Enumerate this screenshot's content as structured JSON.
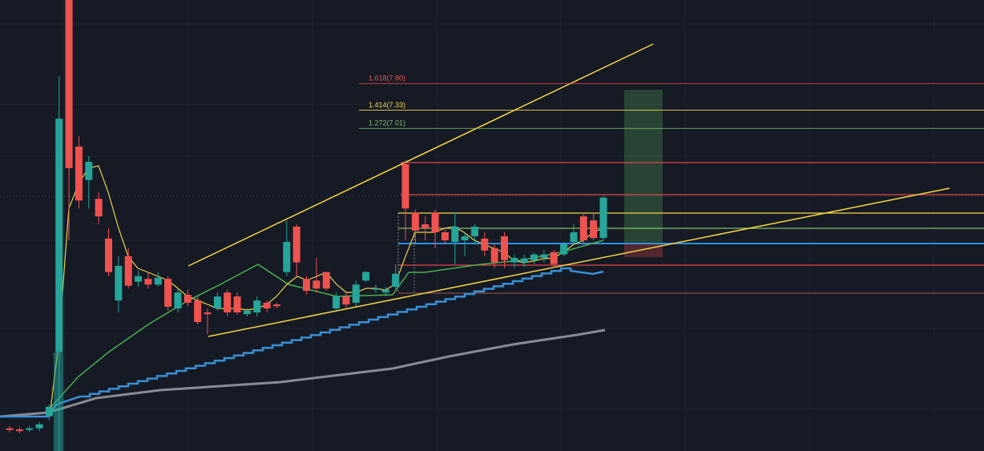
{
  "chart_data": {
    "type": "candlestick",
    "ylim": [
      1.33,
      9.27
    ],
    "up_color": "#26a69a",
    "down_color": "#ef5350",
    "candles": [
      {
        "o": 1.73,
        "h": 1.77,
        "l": 1.66,
        "c": 1.7
      },
      {
        "o": 1.71,
        "h": 1.75,
        "l": 1.64,
        "c": 1.68
      },
      {
        "o": 1.7,
        "h": 1.77,
        "l": 1.66,
        "c": 1.73
      },
      {
        "o": 1.73,
        "h": 1.84,
        "l": 1.68,
        "c": 1.8
      },
      {
        "o": 1.94,
        "h": 2.15,
        "l": 1.87,
        "c": 2.11
      },
      {
        "o": 3.07,
        "h": 7.93,
        "l": 1.33,
        "c": 7.18
      },
      {
        "o": 9.27,
        "h": 9.27,
        "l": 5.04,
        "c": 6.31
      },
      {
        "o": 6.69,
        "h": 6.87,
        "l": 5.6,
        "c": 5.74
      },
      {
        "o": 6.1,
        "h": 6.52,
        "l": 5.6,
        "c": 6.42
      },
      {
        "o": 5.77,
        "h": 5.89,
        "l": 5.32,
        "c": 5.46
      },
      {
        "o": 5.07,
        "h": 5.25,
        "l": 4.41,
        "c": 4.48
      },
      {
        "o": 3.98,
        "h": 4.76,
        "l": 3.77,
        "c": 4.59
      },
      {
        "o": 4.76,
        "h": 4.9,
        "l": 4.19,
        "c": 4.24
      },
      {
        "o": 4.31,
        "h": 4.5,
        "l": 4.22,
        "c": 4.41
      },
      {
        "o": 4.36,
        "h": 4.48,
        "l": 4.19,
        "c": 4.26
      },
      {
        "o": 4.26,
        "h": 4.48,
        "l": 4.22,
        "c": 4.38
      },
      {
        "o": 4.36,
        "h": 4.41,
        "l": 3.8,
        "c": 3.87
      },
      {
        "o": 3.84,
        "h": 4.19,
        "l": 3.77,
        "c": 4.12
      },
      {
        "o": 4.08,
        "h": 4.17,
        "l": 3.88,
        "c": 3.94
      },
      {
        "o": 3.98,
        "h": 4.05,
        "l": 3.56,
        "c": 3.6
      },
      {
        "o": 3.77,
        "h": 3.84,
        "l": 3.38,
        "c": 3.74
      },
      {
        "o": 3.84,
        "h": 4.12,
        "l": 3.8,
        "c": 4.05
      },
      {
        "o": 4.12,
        "h": 4.17,
        "l": 3.7,
        "c": 3.77
      },
      {
        "o": 4.05,
        "h": 4.12,
        "l": 3.73,
        "c": 3.77
      },
      {
        "o": 3.74,
        "h": 3.84,
        "l": 3.7,
        "c": 3.8
      },
      {
        "o": 3.77,
        "h": 4.05,
        "l": 3.7,
        "c": 3.98
      },
      {
        "o": 3.94,
        "h": 3.98,
        "l": 3.77,
        "c": 3.84
      },
      {
        "o": 3.91,
        "h": 3.94,
        "l": 3.84,
        "c": 3.88
      },
      {
        "o": 4.48,
        "h": 5.39,
        "l": 4.41,
        "c": 5.01
      },
      {
        "o": 5.28,
        "h": 5.32,
        "l": 4.41,
        "c": 4.65
      },
      {
        "o": 4.36,
        "h": 4.41,
        "l": 4.08,
        "c": 4.15
      },
      {
        "o": 4.33,
        "h": 4.73,
        "l": 4.12,
        "c": 4.19
      },
      {
        "o": 4.48,
        "h": 4.48,
        "l": 4.15,
        "c": 4.19
      },
      {
        "o": 3.84,
        "h": 4.12,
        "l": 3.8,
        "c": 4.05
      },
      {
        "o": 4.05,
        "h": 4.12,
        "l": 3.84,
        "c": 3.91
      },
      {
        "o": 3.94,
        "h": 4.33,
        "l": 3.88,
        "c": 4.26
      },
      {
        "o": 4.33,
        "h": 4.5,
        "l": 4.31,
        "c": 4.48
      },
      {
        "o": 4.17,
        "h": 4.26,
        "l": 4.12,
        "c": 4.19
      },
      {
        "o": 4.12,
        "h": 4.22,
        "l": 4.05,
        "c": 4.17
      },
      {
        "o": 4.22,
        "h": 4.62,
        "l": 4.17,
        "c": 4.45
      },
      {
        "o": 6.38,
        "h": 6.45,
        "l": 5.04,
        "c": 5.6
      },
      {
        "o": 5.53,
        "h": 5.58,
        "l": 4.97,
        "c": 5.21
      },
      {
        "o": 5.32,
        "h": 5.46,
        "l": 5.04,
        "c": 5.25
      },
      {
        "o": 5.53,
        "h": 5.58,
        "l": 4.9,
        "c": 5.18
      },
      {
        "o": 5.18,
        "h": 5.25,
        "l": 4.97,
        "c": 5.04
      },
      {
        "o": 5.01,
        "h": 5.53,
        "l": 4.62,
        "c": 5.28
      },
      {
        "o": 5.04,
        "h": 5.18,
        "l": 4.76,
        "c": 5.11
      },
      {
        "o": 5.11,
        "h": 5.32,
        "l": 4.97,
        "c": 5.28
      },
      {
        "o": 5.07,
        "h": 5.18,
        "l": 4.76,
        "c": 4.86
      },
      {
        "o": 4.9,
        "h": 4.97,
        "l": 4.55,
        "c": 4.65
      },
      {
        "o": 5.11,
        "h": 5.18,
        "l": 4.55,
        "c": 4.69
      },
      {
        "o": 4.65,
        "h": 4.79,
        "l": 4.55,
        "c": 4.73
      },
      {
        "o": 4.65,
        "h": 4.79,
        "l": 4.57,
        "c": 4.72
      },
      {
        "o": 4.69,
        "h": 4.83,
        "l": 4.62,
        "c": 4.79
      },
      {
        "o": 4.73,
        "h": 4.87,
        "l": 4.65,
        "c": 4.79
      },
      {
        "o": 4.83,
        "h": 4.87,
        "l": 4.55,
        "c": 4.62
      },
      {
        "o": 4.79,
        "h": 5.01,
        "l": 4.76,
        "c": 4.97
      },
      {
        "o": 5.01,
        "h": 5.32,
        "l": 4.97,
        "c": 5.18
      },
      {
        "o": 5.46,
        "h": 5.53,
        "l": 4.97,
        "c": 5.04
      },
      {
        "o": 5.39,
        "h": 5.53,
        "l": 5.04,
        "c": 5.08
      },
      {
        "o": 5.08,
        "h": 5.82,
        "l": 5.04,
        "c": 5.79
      }
    ],
    "fib_levels": [
      {
        "value": 7.8,
        "label": "1.618(7.80)",
        "color": "#f05350"
      },
      {
        "value": 7.33,
        "label": "1.414(7.33)",
        "color": "#f5d547"
      },
      {
        "value": 7.01,
        "label": "1.272(7.01)",
        "color": "#7fc36b"
      }
    ]
  }
}
